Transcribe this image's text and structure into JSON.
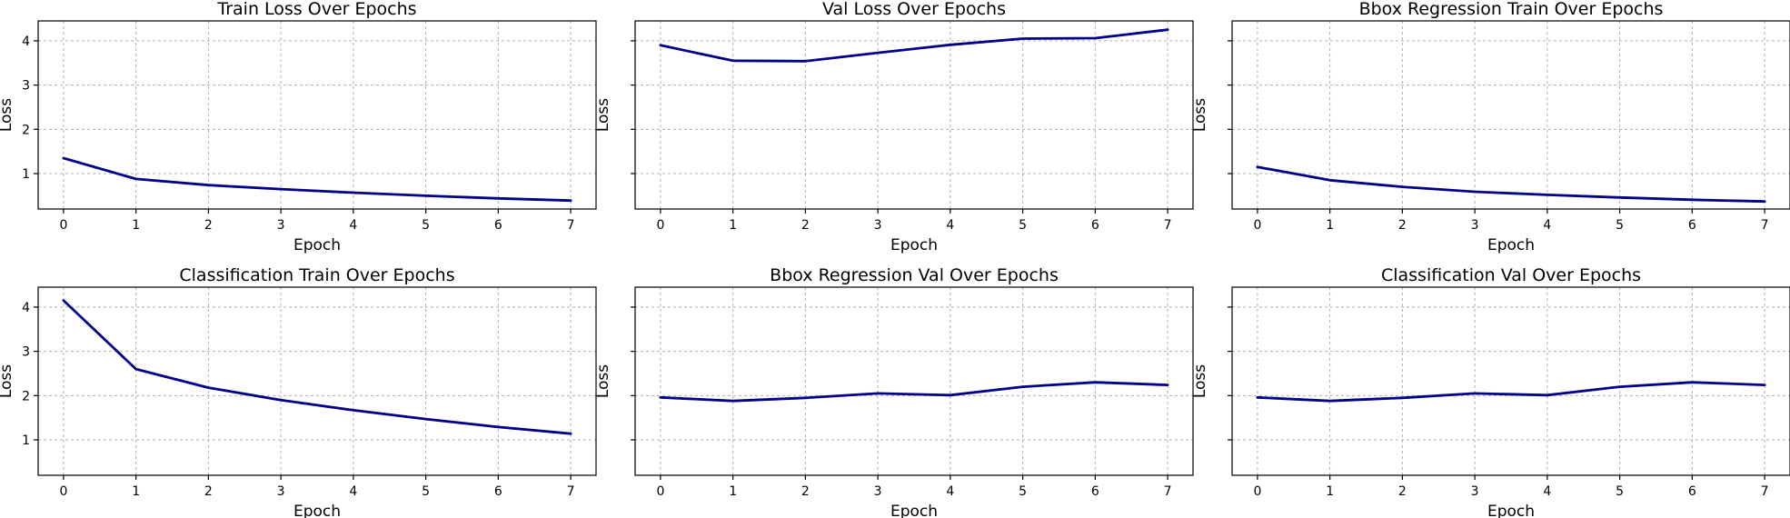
{
  "chart_data": [
    {
      "type": "line",
      "title": "Train Loss Over Epochs",
      "xlabel": "Epoch",
      "ylabel": "Loss",
      "x": [
        0,
        1,
        2,
        3,
        4,
        5,
        6,
        7
      ],
      "series": [
        {
          "values": [
            1.35,
            0.88,
            0.74,
            0.65,
            0.57,
            0.5,
            0.44,
            0.39
          ]
        }
      ],
      "xlim": [
        -0.35,
        7.35
      ],
      "ylim": [
        0.2,
        4.45
      ],
      "xticks": [
        0,
        1,
        2,
        3,
        4,
        5,
        6,
        7
      ],
      "yticks": [
        1,
        2,
        3,
        4
      ],
      "show_ytick_labels": true,
      "grid": true,
      "color": "#00008b"
    },
    {
      "type": "line",
      "title": "Val Loss Over Epochs",
      "xlabel": "Epoch",
      "ylabel": "Loss",
      "x": [
        0,
        1,
        2,
        3,
        4,
        5,
        6,
        7
      ],
      "series": [
        {
          "values": [
            3.9,
            3.55,
            3.54,
            3.73,
            3.91,
            4.05,
            4.06,
            4.25
          ]
        }
      ],
      "xlim": [
        -0.35,
        7.35
      ],
      "ylim": [
        0.2,
        4.45
      ],
      "xticks": [
        0,
        1,
        2,
        3,
        4,
        5,
        6,
        7
      ],
      "yticks": [
        1,
        2,
        3,
        4
      ],
      "show_ytick_labels": false,
      "grid": true,
      "color": "#00008b"
    },
    {
      "type": "line",
      "title": "Bbox Regression Train Over Epochs",
      "xlabel": "Epoch",
      "ylabel": "Loss",
      "x": [
        0,
        1,
        2,
        3,
        4,
        5,
        6,
        7
      ],
      "series": [
        {
          "values": [
            1.15,
            0.85,
            0.7,
            0.59,
            0.52,
            0.46,
            0.41,
            0.37
          ]
        }
      ],
      "xlim": [
        -0.35,
        7.35
      ],
      "ylim": [
        0.2,
        4.45
      ],
      "xticks": [
        0,
        1,
        2,
        3,
        4,
        5,
        6,
        7
      ],
      "yticks": [
        1,
        2,
        3,
        4
      ],
      "show_ytick_labels": false,
      "grid": true,
      "color": "#00008b"
    },
    {
      "type": "line",
      "title": "Classification Train Over Epochs",
      "xlabel": "Epoch",
      "ylabel": "Loss",
      "x": [
        0,
        1,
        2,
        3,
        4,
        5,
        6,
        7
      ],
      "series": [
        {
          "values": [
            4.15,
            2.6,
            2.18,
            1.9,
            1.67,
            1.47,
            1.29,
            1.14
          ]
        }
      ],
      "xlim": [
        -0.35,
        7.35
      ],
      "ylim": [
        0.2,
        4.45
      ],
      "xticks": [
        0,
        1,
        2,
        3,
        4,
        5,
        6,
        7
      ],
      "yticks": [
        1,
        2,
        3,
        4
      ],
      "show_ytick_labels": true,
      "grid": true,
      "color": "#00008b"
    },
    {
      "type": "line",
      "title": "Bbox Regression Val Over Epochs",
      "xlabel": "Epoch",
      "ylabel": "Loss",
      "x": [
        0,
        1,
        2,
        3,
        4,
        5,
        6,
        7
      ],
      "series": [
        {
          "values": [
            1.96,
            1.88,
            1.95,
            2.05,
            2.01,
            2.2,
            2.3,
            2.24
          ]
        }
      ],
      "xlim": [
        -0.35,
        7.35
      ],
      "ylim": [
        0.2,
        4.45
      ],
      "xticks": [
        0,
        1,
        2,
        3,
        4,
        5,
        6,
        7
      ],
      "yticks": [
        1,
        2,
        3,
        4
      ],
      "show_ytick_labels": false,
      "grid": true,
      "color": "#00008b"
    },
    {
      "type": "line",
      "title": "Classification Val Over Epochs",
      "xlabel": "Epoch",
      "ylabel": "Loss",
      "x": [
        0,
        1,
        2,
        3,
        4,
        5,
        6,
        7
      ],
      "series": [
        {
          "values": [
            1.96,
            1.88,
            1.95,
            2.05,
            2.01,
            2.2,
            2.3,
            2.24
          ]
        }
      ],
      "xlim": [
        -0.35,
        7.35
      ],
      "ylim": [
        0.2,
        4.45
      ],
      "xticks": [
        0,
        1,
        2,
        3,
        4,
        5,
        6,
        7
      ],
      "yticks": [
        1,
        2,
        3,
        4
      ],
      "show_ytick_labels": false,
      "grid": true,
      "color": "#00008b"
    }
  ]
}
